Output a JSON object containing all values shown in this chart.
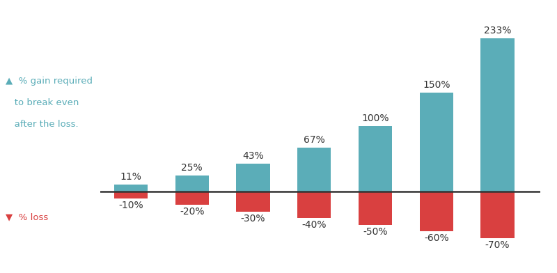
{
  "categories": [
    "-10%",
    "-20%",
    "-30%",
    "-40%",
    "-50%",
    "-60%",
    "-70%"
  ],
  "loss_values": [
    -10,
    -20,
    -30,
    -40,
    -50,
    -60,
    -70
  ],
  "gain_values": [
    11,
    25,
    43,
    67,
    100,
    150,
    233
  ],
  "gain_labels": [
    "11%",
    "25%",
    "43%",
    "67%",
    "100%",
    "150%",
    "233%"
  ],
  "loss_labels": [
    "-10%",
    "-20%",
    "-30%",
    "-40%",
    "-50%",
    "-60%",
    "-70%"
  ],
  "bar_color_gain": "#5BADB8",
  "bar_color_loss": "#D94040",
  "zero_line_color": "#333333",
  "legend_gain_color": "#5BADB8",
  "legend_loss_color": "#D94040",
  "legend_gain_line1": "▲  % gain required",
  "legend_gain_line2": "   to break even",
  "legend_gain_line3": "   after the loss.",
  "legend_loss_text": "▼  % loss",
  "background_color": "#FFFFFF",
  "label_fontsize": 10,
  "legend_fontsize": 9.5,
  "bar_width": 0.55,
  "ylim_top": 270,
  "ylim_bottom": -90,
  "xlim_left": -0.5,
  "xlim_right": 6.7
}
